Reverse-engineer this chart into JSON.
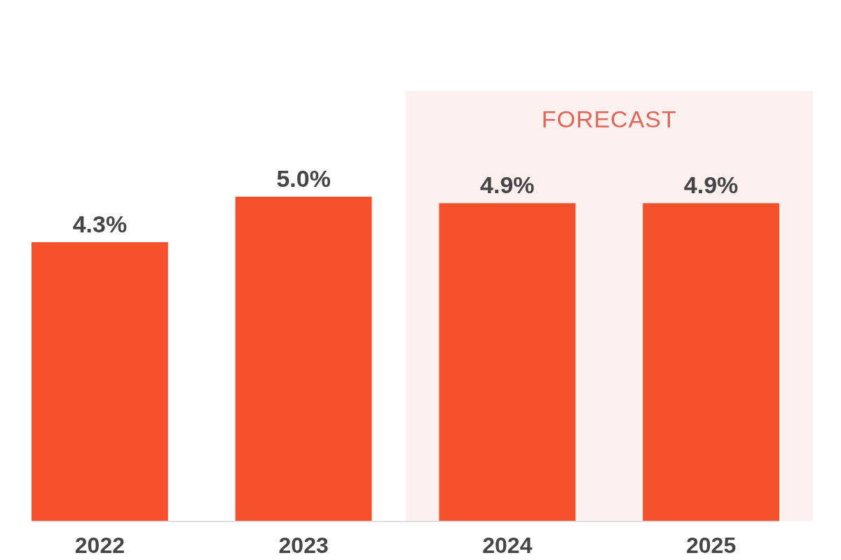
{
  "chart_data": {
    "type": "bar",
    "categories": [
      "2022",
      "2023",
      "2024",
      "2025"
    ],
    "values": [
      4.3,
      5.0,
      4.9,
      4.9
    ],
    "color": "#f4512c",
    "value_labels": [
      "4.3%",
      "5.0%",
      "4.9%",
      "4.9%"
    ],
    "bands": [
      {
        "axis": "x",
        "from": "2024",
        "to": "2025",
        "label": "FORECAST",
        "color": "#fdf1ef"
      }
    ]
  }
}
